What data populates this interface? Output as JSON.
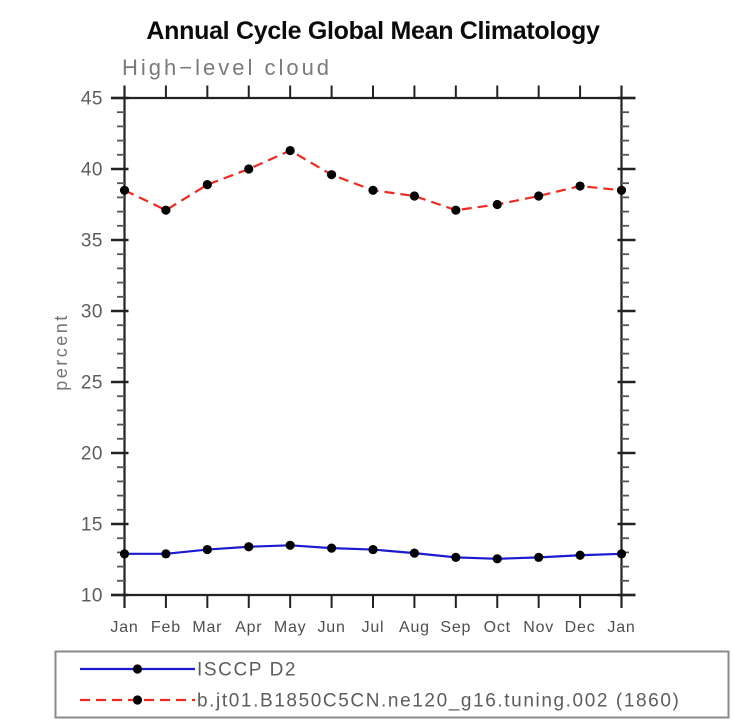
{
  "page": {
    "background": "#ffffff"
  },
  "chart_data": {
    "type": "line",
    "title": "Annual Cycle Global Mean Climatology",
    "subtitle": "High−level cloud",
    "ylabel": "percent",
    "x_labels": [
      "Jan",
      "Feb",
      "Mar",
      "Apr",
      "May",
      "Jun",
      "Jul",
      "Aug",
      "Sep",
      "Oct",
      "Nov",
      "Dec",
      "Jan"
    ],
    "ylim": [
      10,
      45
    ],
    "y_major_step": 5,
    "y_minor_step": 1,
    "y_tick_labels": [
      "10",
      "15",
      "20",
      "25",
      "30",
      "35",
      "40",
      "45"
    ],
    "grid": false,
    "legend_position": "bottom",
    "marker_color": "#000000",
    "marker_shape": "filled-circle",
    "series": [
      {
        "name": "ISCCP D2",
        "color": "#1b1bd0",
        "line_style": "solid",
        "values": [
          12.9,
          12.9,
          13.2,
          13.4,
          13.5,
          13.3,
          13.2,
          12.95,
          12.65,
          12.55,
          12.65,
          12.8,
          12.9
        ]
      },
      {
        "name": "b.jt01.B1850C5CN.ne120_g16.tuning.002 (1860)",
        "color": "#ee2a21",
        "line_style": "dashed",
        "values": [
          38.5,
          37.1,
          38.9,
          40.0,
          41.3,
          39.6,
          38.5,
          38.1,
          37.1,
          37.5,
          38.1,
          38.8,
          38.5
        ]
      }
    ]
  }
}
